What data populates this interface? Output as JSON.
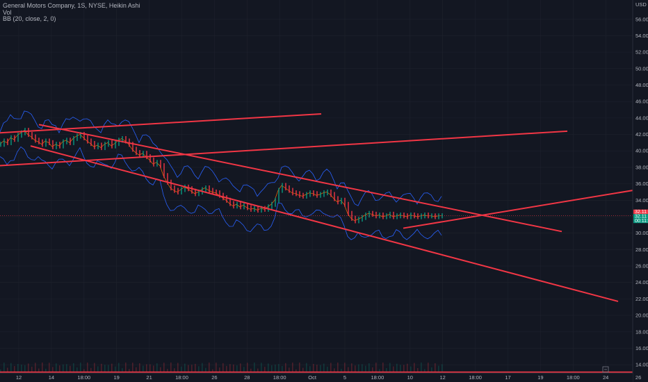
{
  "legend": {
    "symbol_line": "General Motors Company, 1S, NYSE, Heikin Ashi",
    "volume_label": "Vol",
    "indicator_label": "BB (20, close, 2, 0)"
  },
  "chart_data": {
    "type": "line",
    "title": "General Motors Company, 1S, NYSE, Heikin Ashi",
    "currency_label": "USD",
    "ylim": [
      13.0,
      57.5
    ],
    "y_ticks": [
      "56.00",
      "54.00",
      "52.00",
      "50.00",
      "48.00",
      "46.00",
      "44.00",
      "42.00",
      "40.00",
      "38.00",
      "36.00",
      "34.00",
      "32.00",
      "30.00",
      "28.00",
      "26.00",
      "24.00",
      "22.00",
      "20.00",
      "18.00",
      "16.00",
      "14.00"
    ],
    "x_ticks": [
      "12",
      "14",
      "18:00",
      "19",
      "21",
      "18:00",
      "26",
      "28",
      "18:00",
      "Oct",
      "5",
      "18:00",
      "10",
      "12",
      "18:00",
      "17",
      "19",
      "18:00",
      "24",
      "26"
    ],
    "price_tags": [
      {
        "text": "32.11",
        "color": "#f23645"
      },
      {
        "text": "32.11",
        "color": "#089981"
      },
      {
        "text": "00:11:52",
        "color": "#089981"
      }
    ],
    "series": [
      {
        "values_x_index": [
          0,
          5,
          10,
          15,
          20,
          25,
          30,
          35,
          40,
          45,
          50,
          55,
          60,
          65,
          70,
          75,
          80,
          85,
          90,
          95,
          100,
          105,
          110,
          115,
          120,
          125,
          130,
          135,
          140,
          145,
          150,
          155,
          160,
          165,
          170,
          175,
          180,
          185,
          190,
          195,
          200,
          205,
          210,
          215,
          220,
          225,
          230,
          235,
          240,
          245,
          250,
          255,
          260,
          265,
          270,
          275,
          280,
          285,
          290,
          295,
          300,
          305,
          310,
          315,
          320,
          325,
          330,
          335,
          340,
          345,
          350,
          355,
          360,
          365,
          370,
          375,
          380,
          385,
          390,
          395,
          400,
          405,
          410,
          415,
          420,
          425,
          430,
          435,
          440,
          445,
          450,
          455,
          460,
          465,
          470,
          475,
          480,
          485,
          490,
          495,
          500,
          505,
          510,
          515,
          520,
          525,
          530,
          535,
          540,
          545,
          550,
          555,
          560,
          565,
          570,
          575,
          580,
          585,
          590,
          595,
          600,
          605,
          610,
          615,
          620,
          625,
          630,
          635
        ],
        "values": [
          40.8,
          41.2,
          41.0,
          41.6,
          41.4,
          41.9,
          42.2,
          42.5,
          42.0,
          41.7,
          41.3,
          41.1,
          40.8,
          41.2,
          41.0,
          40.5,
          40.8,
          40.6,
          41.1,
          41.3,
          41.0,
          41.5,
          41.8,
          42.0,
          41.6,
          41.2,
          40.9,
          40.5,
          40.7,
          40.4,
          40.8,
          41.0,
          40.6,
          40.9,
          41.3,
          41.5,
          41.2,
          40.8,
          40.2,
          39.8,
          39.5,
          39.7,
          39.3,
          38.9,
          38.4,
          38.6,
          38.2,
          37.0,
          36.2,
          35.5,
          35.2,
          35.0,
          35.3,
          35.6,
          35.4,
          35.1,
          34.8,
          35.0,
          35.3,
          35.5,
          35.2,
          35.0,
          34.9,
          34.6,
          34.3,
          34.0,
          33.6,
          33.3,
          33.5,
          33.2,
          33.4,
          33.1,
          32.9,
          33.0,
          32.8,
          33.0,
          32.9,
          33.2,
          33.5,
          34.0,
          35.2,
          35.8,
          35.5,
          35.2,
          34.9,
          34.8,
          34.6,
          34.5,
          34.7,
          34.9,
          34.8,
          34.6,
          34.7,
          34.9,
          35.0,
          34.7,
          34.2,
          33.8,
          34.0,
          33.5,
          32.4,
          31.8,
          31.5,
          31.7,
          31.9,
          32.2,
          32.4,
          32.3,
          32.1,
          32.2,
          32.0,
          32.1,
          32.3,
          32.0,
          32.1,
          32.2,
          32.1,
          32.0,
          32.2,
          32.1,
          32.0,
          32.1,
          32.2,
          32.1,
          32.1,
          32.0,
          32.1,
          32.11
        ]
      }
    ],
    "trend_lines": [
      {
        "from": [
          0,
          42.2
        ],
        "to": [
          462,
          44.5
        ]
      },
      {
        "from": [
          0,
          38.2
        ],
        "to": [
          816,
          42.4
        ]
      },
      {
        "from": [
          56,
          43.2
        ],
        "to": [
          808,
          30.2
        ]
      },
      {
        "from": [
          44,
          40.6
        ],
        "to": [
          889,
          21.7
        ]
      },
      {
        "from": [
          580,
          30.6
        ],
        "to": [
          910,
          35.2
        ]
      },
      {
        "from": [
          0,
          13.1
        ],
        "to": [
          910,
          13.1
        ]
      }
    ],
    "line_color": "#f23645",
    "band_color": "#2962ff",
    "grid": true
  }
}
